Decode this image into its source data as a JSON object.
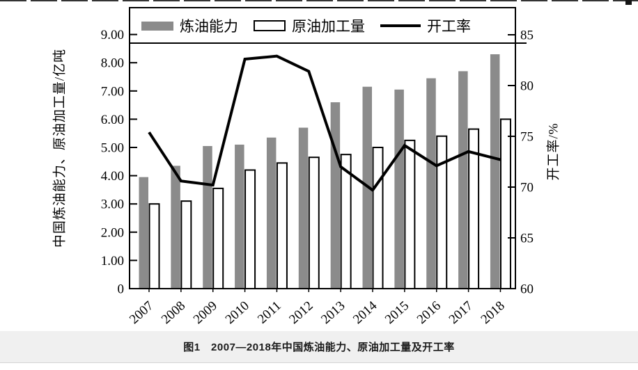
{
  "figure": {
    "caption": "图1　2007—2018年中国炼油能力、原油加工量及开工率"
  },
  "chart_data": {
    "type": "bar",
    "subtype": "dual-axis bar and line combo",
    "title": "图1　2007—2018年中国炼油能力、原油加工量及开工率",
    "categories": [
      "2007",
      "2008",
      "2009",
      "2010",
      "2011",
      "2012",
      "2013",
      "2014",
      "2015",
      "2016",
      "2017",
      "2018"
    ],
    "series": [
      {
        "name": "炼油能力",
        "type": "bar",
        "axis": "left",
        "color": "#8b8b8b",
        "outline": "none",
        "values": [
          3.95,
          4.35,
          5.05,
          5.1,
          5.35,
          5.7,
          6.6,
          7.15,
          7.05,
          7.45,
          7.7,
          8.3
        ]
      },
      {
        "name": "原油加工量",
        "type": "bar",
        "axis": "left",
        "color": "#ffffff",
        "outline": "#000000",
        "values": [
          3.0,
          3.1,
          3.55,
          4.2,
          4.45,
          4.65,
          4.75,
          5.0,
          5.25,
          5.4,
          5.65,
          6.0
        ]
      },
      {
        "name": "开工率",
        "type": "line",
        "axis": "right",
        "color": "#000000",
        "values": [
          75.4,
          70.6,
          70.2,
          82.6,
          82.9,
          81.4,
          72.0,
          69.7,
          74.1,
          72.1,
          73.5,
          72.7
        ]
      }
    ],
    "left_axis": {
      "label": "中国炼油能力、原油加工量/亿吨",
      "ticks": [
        "0",
        "1.00",
        "2.00",
        "3.00",
        "4.00",
        "5.00",
        "6.00",
        "7.00",
        "8.00",
        "9.00"
      ],
      "range": [
        0,
        9.95
      ],
      "unit": "亿吨"
    },
    "right_axis": {
      "label": "开工率/%",
      "ticks": [
        "60",
        "65",
        "70",
        "75",
        "80",
        "85"
      ],
      "range": [
        60,
        87.7
      ],
      "unit": "%"
    },
    "x_axis": {
      "tick_rotation_deg": -42
    },
    "legend": {
      "position": "inside-top",
      "items": [
        "炼油能力",
        "原油加工量",
        "开工率"
      ]
    },
    "grid": false
  }
}
